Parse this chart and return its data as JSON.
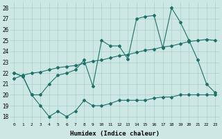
{
  "xlabel": "Humidex (Indice chaleur)",
  "bg_color": "#cde8e4",
  "grid_color": "#aacfca",
  "line_color": "#1e7068",
  "xlim": [
    -0.5,
    23.5
  ],
  "ylim": [
    17.5,
    28.5
  ],
  "xticks": [
    0,
    1,
    2,
    3,
    4,
    5,
    6,
    7,
    8,
    9,
    10,
    11,
    12,
    13,
    14,
    15,
    16,
    17,
    18,
    19,
    20,
    21,
    22,
    23
  ],
  "yticks": [
    18,
    19,
    20,
    21,
    22,
    23,
    24,
    25,
    26,
    27,
    28
  ],
  "series1_x": [
    0,
    1,
    2,
    3,
    4,
    5,
    6,
    7,
    8,
    9,
    10,
    11,
    12,
    13,
    14,
    15,
    16,
    17,
    18,
    19,
    20,
    21,
    22,
    23
  ],
  "series1_y": [
    22,
    21.7,
    20.0,
    19.0,
    18.0,
    18.5,
    18.0,
    18.5,
    19.5,
    19.0,
    19.0,
    19.2,
    19.5,
    19.5,
    19.5,
    19.5,
    19.7,
    19.8,
    19.8,
    20.0,
    20.0,
    20.0,
    20.0,
    20.0
  ],
  "series2_x": [
    0,
    1,
    2,
    3,
    4,
    5,
    6,
    7,
    8,
    9,
    10,
    11,
    12,
    13,
    14,
    15,
    16,
    17,
    18,
    19,
    20,
    21,
    22,
    23
  ],
  "series2_y": [
    21.5,
    21.8,
    22.0,
    22.1,
    22.3,
    22.5,
    22.6,
    22.7,
    22.9,
    23.1,
    23.2,
    23.4,
    23.6,
    23.7,
    23.9,
    24.1,
    24.2,
    24.4,
    24.5,
    24.7,
    24.9,
    25.0,
    25.1,
    25.0
  ],
  "series3_x": [
    0,
    1,
    2,
    3,
    4,
    5,
    6,
    7,
    8,
    9,
    10,
    11,
    12,
    13,
    14,
    15,
    16,
    17,
    18,
    19,
    20,
    21,
    22,
    23
  ],
  "series3_y": [
    22.0,
    21.7,
    20.0,
    20.0,
    21.0,
    21.8,
    22.0,
    22.3,
    23.2,
    20.8,
    25.0,
    24.5,
    24.5,
    23.3,
    27.0,
    27.2,
    27.3,
    24.3,
    28.0,
    26.7,
    25.0,
    23.2,
    21.0,
    20.2
  ]
}
